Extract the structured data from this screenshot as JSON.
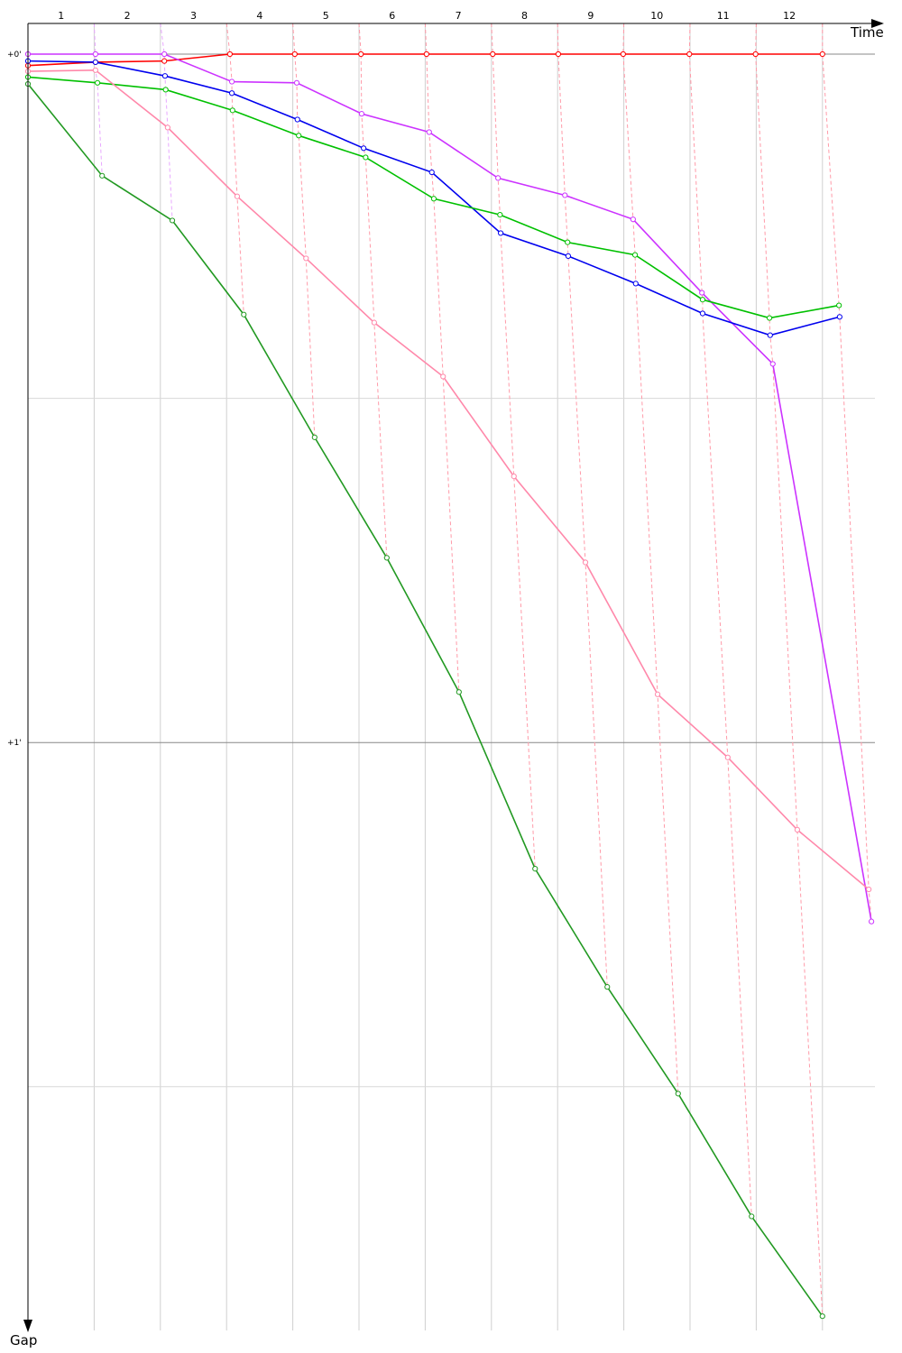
{
  "chart_data": {
    "type": "line",
    "xlabel": "Time",
    "ylabel": "Gap",
    "x_tick_labels": [
      "1",
      "2",
      "3",
      "4",
      "5",
      "6",
      "7",
      "8",
      "9",
      "10",
      "11",
      "12"
    ],
    "y_tick_labels": [
      {
        "value": 0,
        "label": "+0'"
      },
      {
        "value": 60,
        "label": "+1'"
      }
    ],
    "y_gridlines_seconds": [
      0,
      30,
      60,
      90
    ],
    "y_inverted": true,
    "grid": true,
    "series": [
      {
        "color": "#ff0000",
        "points": [
          [
            0,
            1.0
          ],
          [
            1.02,
            0.7
          ],
          [
            2.06,
            0.6
          ],
          [
            3.05,
            0
          ],
          [
            4.03,
            0
          ],
          [
            5.03,
            0
          ],
          [
            6.02,
            0
          ],
          [
            7.02,
            0
          ],
          [
            8.01,
            0
          ],
          [
            8.99,
            0
          ],
          [
            9.99,
            0
          ],
          [
            10.99,
            0
          ],
          [
            12.0,
            0
          ]
        ]
      },
      {
        "color": "#cc33ff",
        "points": [
          [
            0,
            0
          ],
          [
            1.02,
            0
          ],
          [
            2.06,
            0
          ],
          [
            3.08,
            2.4
          ],
          [
            4.06,
            2.5
          ],
          [
            5.04,
            5.2
          ],
          [
            6.06,
            6.8
          ],
          [
            7.1,
            10.8
          ],
          [
            8.11,
            12.3
          ],
          [
            9.14,
            14.4
          ],
          [
            10.18,
            20.8
          ],
          [
            11.25,
            27.0
          ],
          [
            12.74,
            75.6
          ]
        ]
      },
      {
        "color": "#0000ee",
        "points": [
          [
            0,
            0.6
          ],
          [
            1.02,
            0.7
          ],
          [
            2.07,
            1.9
          ],
          [
            3.08,
            3.4
          ],
          [
            4.07,
            5.7
          ],
          [
            5.07,
            8.2
          ],
          [
            6.1,
            10.3
          ],
          [
            7.14,
            15.6
          ],
          [
            8.16,
            17.6
          ],
          [
            9.18,
            20.0
          ],
          [
            10.19,
            22.6
          ],
          [
            11.21,
            24.5
          ],
          [
            12.26,
            22.9
          ]
        ]
      },
      {
        "color": "#00c000",
        "points": [
          [
            0,
            2.0
          ],
          [
            1.05,
            2.5
          ],
          [
            2.08,
            3.1
          ],
          [
            3.09,
            4.9
          ],
          [
            4.09,
            7.1
          ],
          [
            5.1,
            9.0
          ],
          [
            6.13,
            12.6
          ],
          [
            7.13,
            14.0
          ],
          [
            8.15,
            16.4
          ],
          [
            9.17,
            17.5
          ],
          [
            10.19,
            21.4
          ],
          [
            11.2,
            23.0
          ],
          [
            12.25,
            21.9
          ]
        ]
      },
      {
        "color": "#ff88aa",
        "points": [
          [
            0,
            1.5
          ],
          [
            1.02,
            1.4
          ],
          [
            2.11,
            6.4
          ],
          [
            3.16,
            12.4
          ],
          [
            4.2,
            17.8
          ],
          [
            5.23,
            23.4
          ],
          [
            6.27,
            28.1
          ],
          [
            7.34,
            36.8
          ],
          [
            8.42,
            44.3
          ],
          [
            9.51,
            55.8
          ],
          [
            10.57,
            61.3
          ],
          [
            11.62,
            67.6
          ],
          [
            12.7,
            72.8
          ]
        ]
      },
      {
        "color": "#229922",
        "points": [
          [
            0,
            2.6
          ],
          [
            1.12,
            10.6
          ],
          [
            2.18,
            14.5
          ],
          [
            3.26,
            22.7
          ],
          [
            4.33,
            33.4
          ],
          [
            5.42,
            43.9
          ],
          [
            6.51,
            55.6
          ],
          [
            7.66,
            71.0
          ],
          [
            8.75,
            81.3
          ],
          [
            9.82,
            90.6
          ],
          [
            10.93,
            101.3
          ],
          [
            12.0,
            110.0
          ]
        ]
      }
    ]
  }
}
